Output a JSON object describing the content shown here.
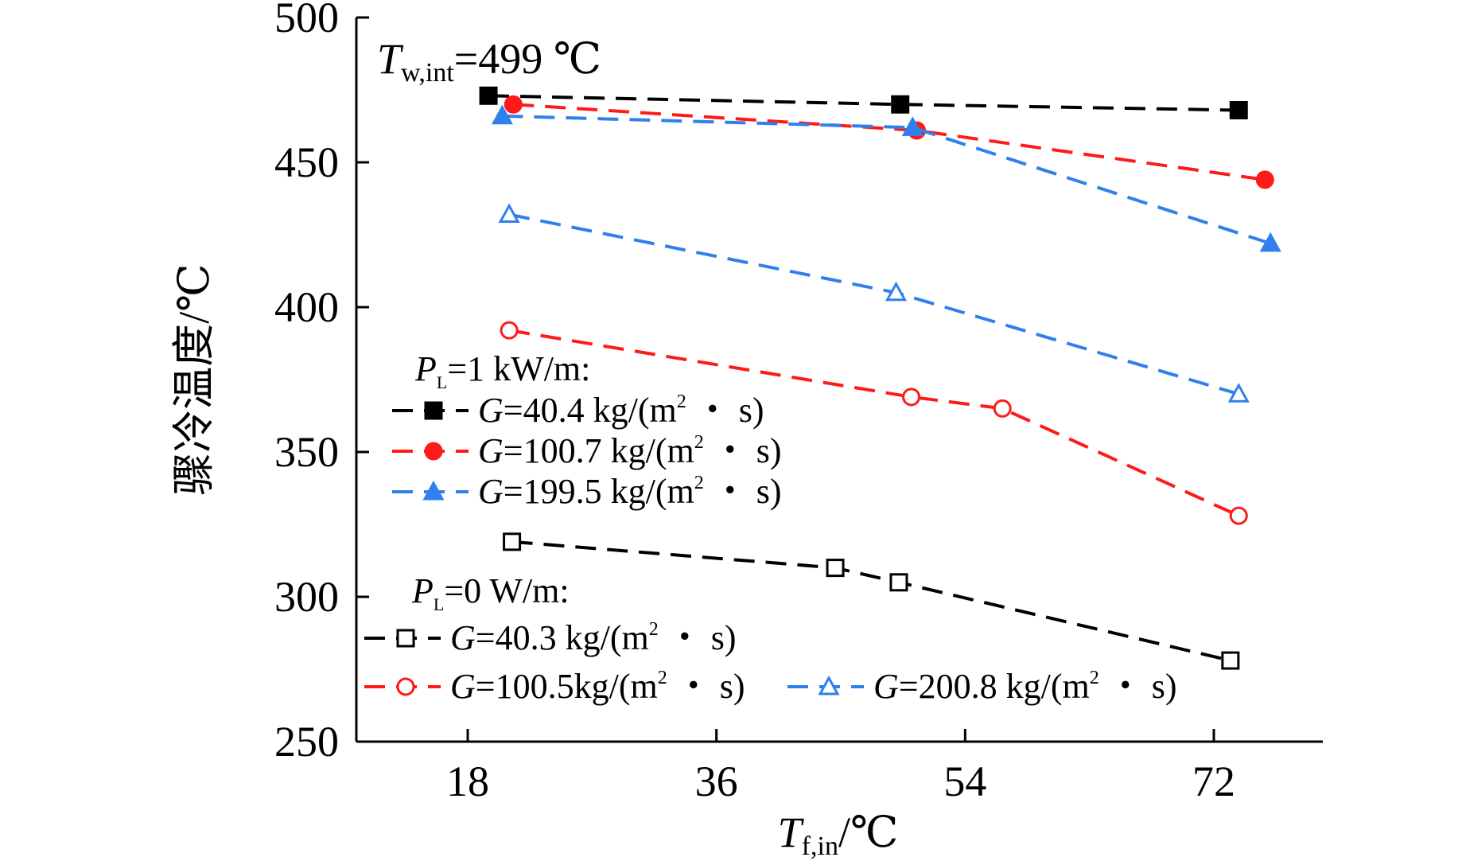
{
  "chart_data": {
    "type": "line",
    "xlabel_main": "T",
    "xlabel_sub": "f,in",
    "xlabel_unit": "/℃",
    "ylabel": "骤冷温度/℃",
    "x_ticks": [
      18,
      36,
      54,
      72
    ],
    "y_ticks": [
      250,
      300,
      350,
      400,
      450,
      500
    ],
    "xlim": [
      10,
      80
    ],
    "ylim": [
      250,
      500
    ],
    "annotation": {
      "main": "T",
      "sub": "w,int",
      "rest": "=499 ℃"
    },
    "legend_groups": [
      {
        "label_main": "P",
        "label_sub": "L",
        "label_rest": "=1 kW/m:"
      },
      {
        "label_main": "P",
        "label_sub": "L",
        "label_rest": "=0 W/m:"
      }
    ],
    "series": [
      {
        "name": "G=40.4 kg/(m²・s)",
        "legend_g": "G",
        "legend_rest": "=40.4 kg/(m",
        "legend_sup": "2",
        "legend_end": " ・ s)",
        "color": "#000000",
        "marker": "square",
        "filled": true,
        "x": [
          19.5,
          49.3,
          73.8
        ],
        "y": [
          473,
          470,
          468
        ]
      },
      {
        "name": "G=100.7 kg/(m²・s)",
        "legend_g": "G",
        "legend_rest": "=100.7 kg/(m",
        "legend_sup": "2",
        "legend_end": " ・ s)",
        "color": "#ff1a1a",
        "marker": "circle",
        "filled": true,
        "x": [
          21.3,
          50.5,
          75.7
        ],
        "y": [
          470,
          461,
          444
        ]
      },
      {
        "name": "G=199.5 kg/(m²・s)",
        "legend_g": "G",
        "legend_rest": "=199.5 kg/(m",
        "legend_sup": "2",
        "legend_end": " ・ s)",
        "color": "#2f80ed",
        "marker": "triangle",
        "filled": true,
        "x": [
          20.5,
          50.2,
          76.1
        ],
        "y": [
          466,
          462,
          422
        ]
      },
      {
        "name": "G=40.3 kg/(m²・s)",
        "legend_g": "G",
        "legend_rest": "=40.3 kg/(m",
        "legend_sup": "2",
        "legend_end": " ・ s)",
        "color": "#000000",
        "marker": "square",
        "filled": false,
        "x": [
          21.2,
          44.6,
          49.2,
          73.2
        ],
        "y": [
          319,
          310,
          305,
          278
        ]
      },
      {
        "name": "G=100.5kg/(m²・s)",
        "legend_g": "G",
        "legend_rest": "=100.5kg/(m",
        "legend_sup": "2",
        "legend_end": " ・ s)",
        "color": "#ff1a1a",
        "marker": "circle",
        "filled": false,
        "x": [
          21.0,
          50.1,
          56.7,
          73.8
        ],
        "y": [
          392,
          369,
          365,
          328
        ]
      },
      {
        "name": "G=200.8 kg/(m²・s)",
        "legend_g": "G",
        "legend_rest": "=200.8 kg/(m",
        "legend_sup": "2",
        "legend_end": " ・ s)",
        "color": "#2f80ed",
        "marker": "triangle",
        "filled": false,
        "x": [
          21.0,
          49.0,
          73.8
        ],
        "y": [
          432,
          405,
          370
        ]
      }
    ]
  }
}
